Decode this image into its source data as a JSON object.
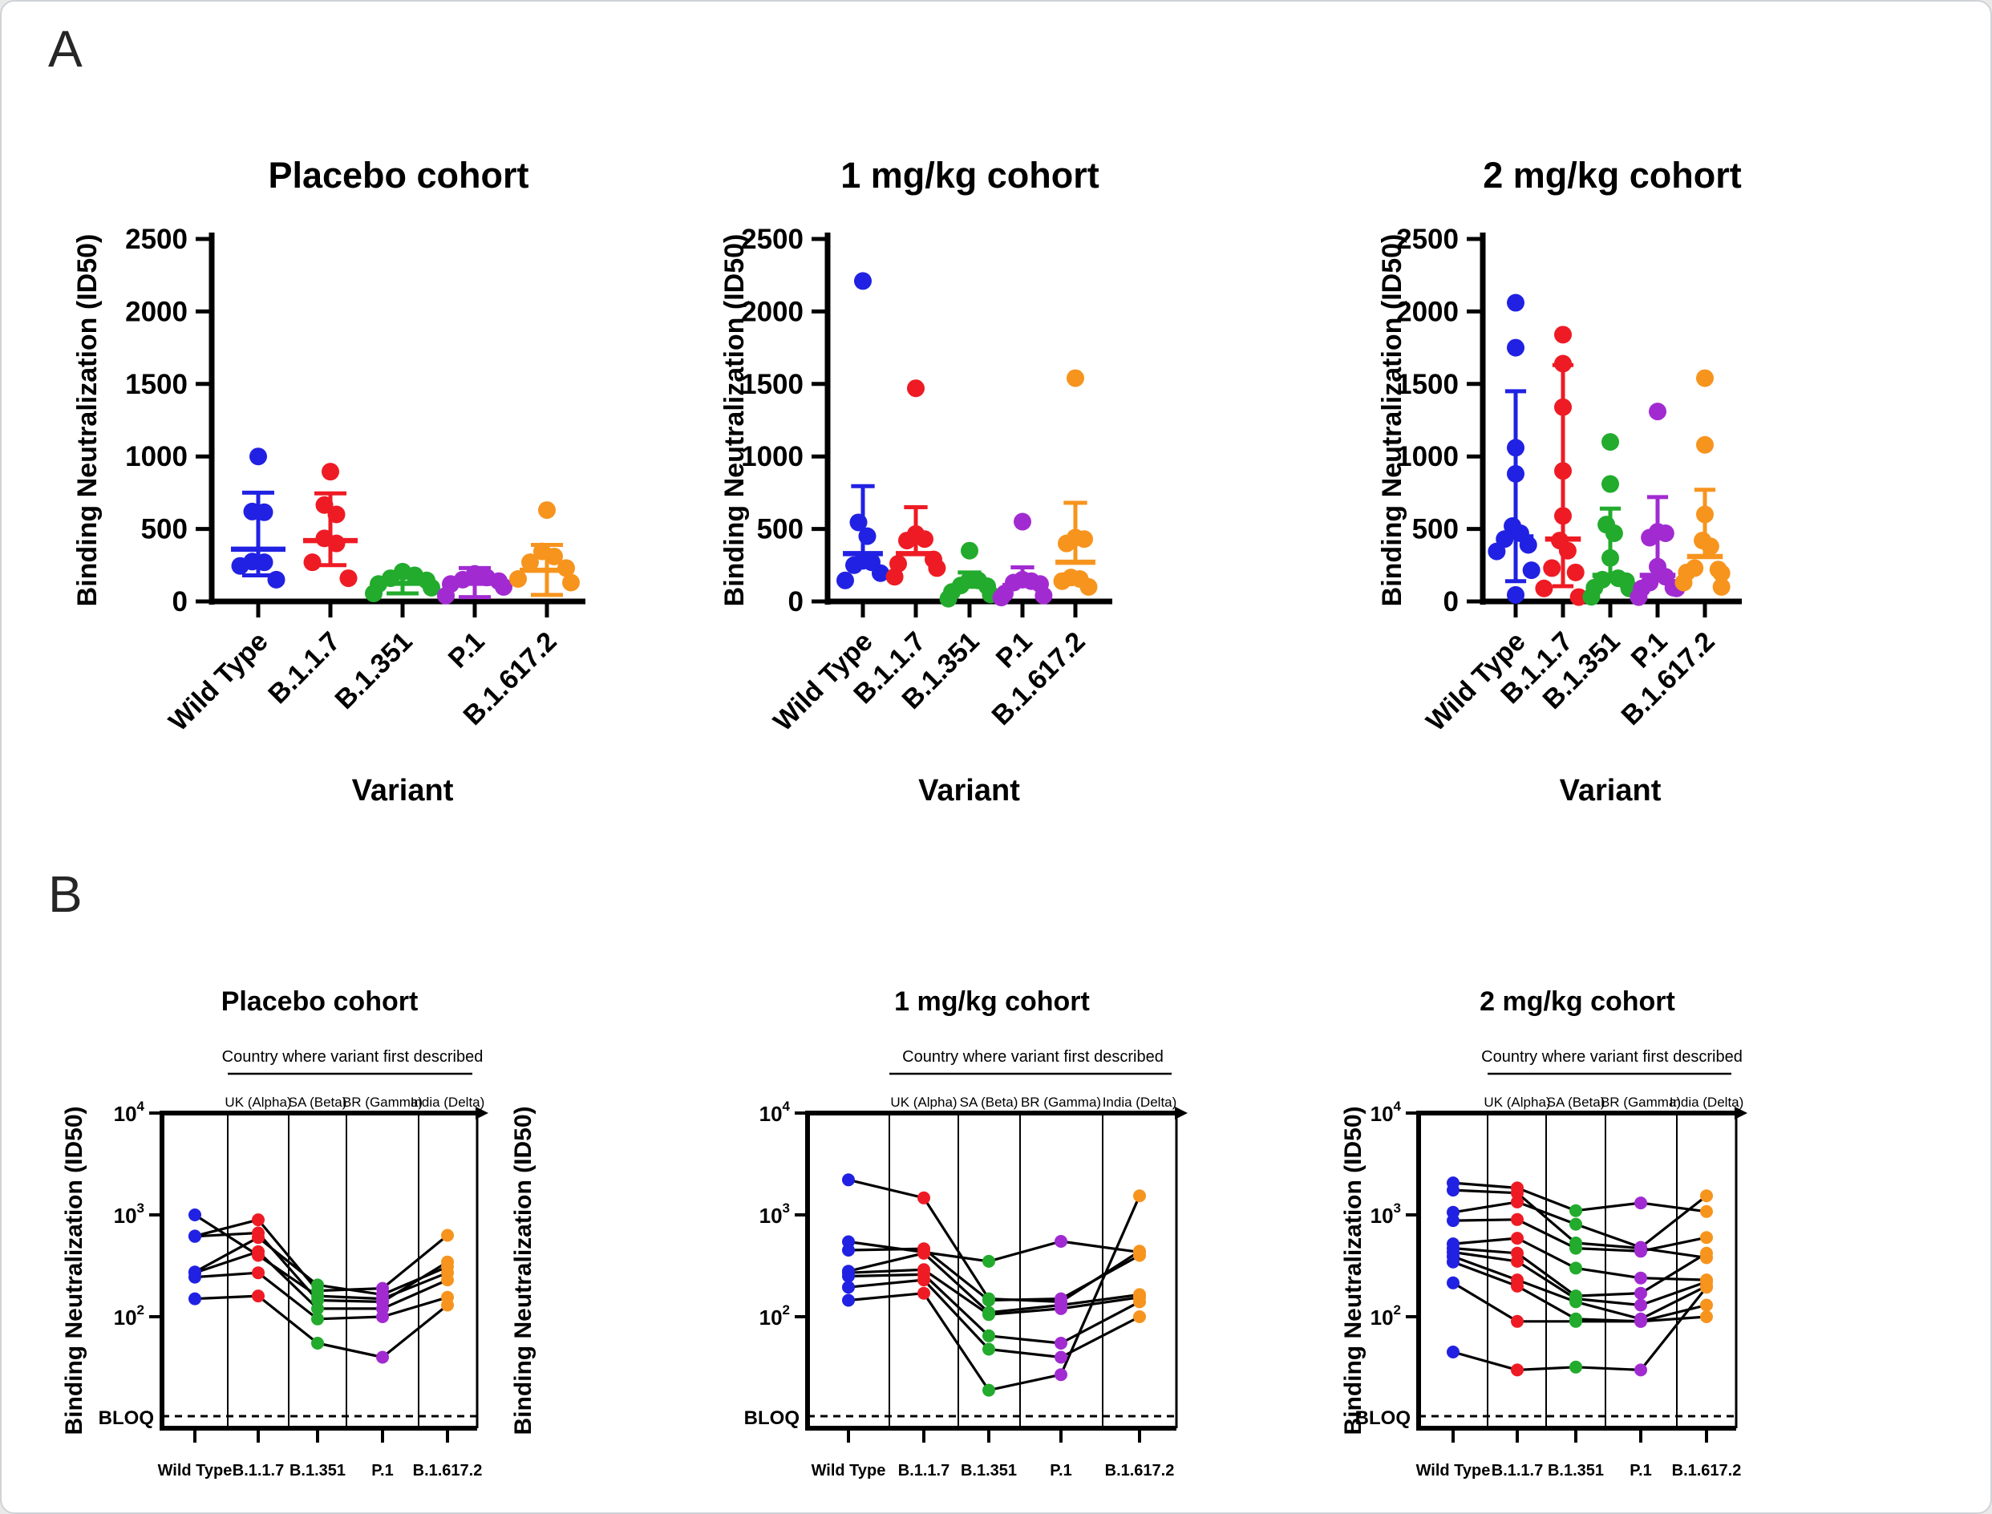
{
  "figure": {
    "panel_a": {
      "label": "A"
    },
    "panel_b": {
      "label": "B"
    },
    "colors": {
      "blue": "#2121e3",
      "red": "#ee1b24",
      "green": "#22ab2d",
      "purple": "#a12bd1",
      "orange": "#f7941e",
      "axis": "#000000",
      "subject_line": "#000000"
    },
    "variants": [
      "Wild Type",
      "B.1.1.7",
      "B.1.351",
      "P.1",
      "B.1.617.2"
    ]
  },
  "chart_data": [
    {
      "id": "panel-a-placebo",
      "panel": "A",
      "type": "scatter",
      "title": "Placebo cohort",
      "ylabel": "Binding Neutralization (ID50)",
      "xlabel": "Variant",
      "ylim": [
        0,
        2500
      ],
      "yticks": [
        0,
        500,
        1000,
        1500,
        2000,
        2500
      ],
      "categories": [
        "Wild Type",
        "B.1.1.7",
        "B.1.351",
        "P.1",
        "B.1.617.2"
      ],
      "series": [
        {
          "variant": "Wild Type",
          "color": "blue",
          "points": [
            1000,
            620,
            615,
            275,
            270,
            245,
            150
          ],
          "center": 360,
          "upper": 750,
          "lower": 180
        },
        {
          "variant": "B.1.1.7",
          "color": "red",
          "points": [
            895,
            665,
            600,
            435,
            400,
            270,
            160
          ],
          "center": 420,
          "upper": 745,
          "lower": 250
        },
        {
          "variant": "B.1.351",
          "color": "green",
          "points": [
            205,
            180,
            160,
            145,
            120,
            95,
            55
          ],
          "center": 125,
          "upper": 195,
          "lower": 55
        },
        {
          "variant": "P.1",
          "color": "purple",
          "points": [
            190,
            165,
            150,
            140,
            120,
            100,
            40
          ],
          "center": 125,
          "upper": 230,
          "lower": 30
        },
        {
          "variant": "B.1.617.2",
          "color": "orange",
          "points": [
            630,
            345,
            310,
            270,
            230,
            155,
            130
          ],
          "center": 215,
          "upper": 390,
          "lower": 45
        }
      ]
    },
    {
      "id": "panel-a-1mgkg",
      "panel": "A",
      "type": "scatter",
      "title": "1 mg/kg cohort",
      "ylabel": "Binding Neutralization (ID50)",
      "xlabel": "Variant",
      "ylim": [
        0,
        2500
      ],
      "yticks": [
        0,
        500,
        1000,
        1500,
        2000,
        2500
      ],
      "categories": [
        "Wild Type",
        "B.1.1.7",
        "B.1.351",
        "P.1",
        "B.1.617.2"
      ],
      "series": [
        {
          "variant": "Wild Type",
          "color": "blue",
          "points": [
            2210,
            545,
            450,
            280,
            270,
            250,
            195,
            145
          ],
          "center": 330,
          "upper": 795,
          "lower": null
        },
        {
          "variant": "B.1.1.7",
          "color": "red",
          "points": [
            1470,
            465,
            430,
            420,
            290,
            260,
            230,
            170
          ],
          "center": 330,
          "upper": 650,
          "lower": null
        },
        {
          "variant": "B.1.351",
          "color": "green",
          "points": [
            350,
            150,
            145,
            110,
            105,
            65,
            48,
            19
          ],
          "center": 105,
          "upper": 200,
          "lower": null
        },
        {
          "variant": "P.1",
          "color": "purple",
          "points": [
            550,
            150,
            140,
            130,
            120,
            55,
            40,
            27
          ],
          "center": 110,
          "upper": 235,
          "lower": null
        },
        {
          "variant": "B.1.617.2",
          "color": "orange",
          "points": [
            1540,
            440,
            430,
            400,
            165,
            155,
            140,
            100
          ],
          "center": 270,
          "upper": 680,
          "lower": null
        }
      ]
    },
    {
      "id": "panel-a-2mgkg",
      "panel": "A",
      "type": "scatter",
      "title": "2 mg/kg cohort",
      "ylabel": "Binding Neutralization (ID50)",
      "xlabel": "Variant",
      "ylim": [
        0,
        2500
      ],
      "yticks": [
        0,
        500,
        1000,
        1500,
        2000,
        2500
      ],
      "categories": [
        "Wild Type",
        "B.1.1.7",
        "B.1.351",
        "P.1",
        "B.1.617.2"
      ],
      "series": [
        {
          "variant": "Wild Type",
          "color": "blue",
          "points": [
            2060,
            1750,
            1060,
            880,
            520,
            470,
            430,
            390,
            345,
            215,
            45
          ],
          "center": 445,
          "upper": 1450,
          "lower": 140
        },
        {
          "variant": "B.1.1.7",
          "color": "red",
          "points": [
            1840,
            1640,
            1340,
            900,
            590,
            420,
            350,
            230,
            200,
            90,
            30
          ],
          "center": 430,
          "upper": 1630,
          "lower": 105
        },
        {
          "variant": "B.1.351",
          "color": "green",
          "points": [
            1100,
            810,
            530,
            470,
            300,
            160,
            150,
            140,
            95,
            90,
            32
          ],
          "center": 180,
          "upper": 640,
          "lower": null
        },
        {
          "variant": "P.1",
          "color": "purple",
          "points": [
            1310,
            480,
            470,
            440,
            240,
            170,
            130,
            95,
            90,
            90,
            30
          ],
          "center": 180,
          "upper": 720,
          "lower": null
        },
        {
          "variant": "B.1.617.2",
          "color": "orange",
          "points": [
            1540,
            1080,
            600,
            420,
            380,
            230,
            220,
            200,
            195,
            130,
            100
          ],
          "center": 310,
          "upper": 770,
          "lower": null
        }
      ]
    },
    {
      "id": "panel-b-placebo",
      "panel": "B",
      "type": "paired-line",
      "yscale": "log",
      "title": "Placebo cohort",
      "countries_header": "Country where variant first described",
      "countries": [
        "UK (Alpha)",
        "SA (Beta)",
        "BR (Gamma)",
        "India (Delta)"
      ],
      "ylabel": "Binding Neutralization (ID50)",
      "ytick_exponents": [
        4,
        3,
        2
      ],
      "bloq_label": "BLOQ",
      "categories": [
        "Wild Type",
        "B.1.1.7",
        "B.1.351",
        "P.1",
        "B.1.617.2"
      ],
      "subjects": [
        [
          1000,
          400,
          160,
          150,
          270
        ],
        [
          620,
          895,
          180,
          190,
          630
        ],
        [
          615,
          665,
          145,
          140,
          345
        ],
        [
          275,
          600,
          205,
          165,
          310
        ],
        [
          270,
          435,
          120,
          120,
          230
        ],
        [
          245,
          270,
          95,
          100,
          155
        ],
        [
          150,
          160,
          55,
          40,
          130
        ]
      ]
    },
    {
      "id": "panel-b-1mgkg",
      "panel": "B",
      "type": "paired-line",
      "yscale": "log",
      "title": "1 mg/kg cohort",
      "countries_header": "Country where variant first described",
      "countries": [
        "UK (Alpha)",
        "SA (Beta)",
        "BR (Gamma)",
        "India (Delta)"
      ],
      "ylabel": "Binding Neutralization (ID50)",
      "ytick_exponents": [
        4,
        3,
        2
      ],
      "bloq_label": "BLOQ",
      "categories": [
        "Wild Type",
        "B.1.1.7",
        "B.1.351",
        "P.1",
        "B.1.617.2"
      ],
      "subjects": [
        [
          2210,
          1470,
          150,
          140,
          440
        ],
        [
          545,
          430,
          350,
          550,
          430
        ],
        [
          450,
          465,
          145,
          150,
          400
        ],
        [
          280,
          420,
          110,
          130,
          165
        ],
        [
          270,
          290,
          105,
          120,
          155
        ],
        [
          250,
          260,
          65,
          55,
          140
        ],
        [
          195,
          230,
          48,
          40,
          100
        ],
        [
          145,
          170,
          19,
          27,
          1540
        ]
      ]
    },
    {
      "id": "panel-b-2mgkg",
      "panel": "B",
      "type": "paired-line",
      "yscale": "log",
      "title": "2 mg/kg cohort",
      "countries_header": "Country where variant first described",
      "countries": [
        "UK (Alpha)",
        "SA (Beta)",
        "BR (Gamma)",
        "India (Delta)"
      ],
      "ylabel": "Binding Neutralization (ID50)",
      "ytick_exponents": [
        4,
        3,
        2
      ],
      "bloq_label": "BLOQ",
      "categories": [
        "Wild Type",
        "B.1.1.7",
        "B.1.351",
        "P.1",
        "B.1.617.2"
      ],
      "subjects": [
        [
          2060,
          1840,
          1100,
          1310,
          1080
        ],
        [
          1750,
          1640,
          530,
          470,
          380
        ],
        [
          1060,
          1340,
          810,
          480,
          1540
        ],
        [
          880,
          900,
          470,
          440,
          600
        ],
        [
          520,
          590,
          300,
          240,
          230
        ],
        [
          470,
          420,
          160,
          170,
          420
        ],
        [
          430,
          350,
          150,
          130,
          220
        ],
        [
          390,
          230,
          140,
          95,
          200
        ],
        [
          345,
          200,
          95,
          90,
          130
        ],
        [
          215,
          90,
          90,
          90,
          100
        ],
        [
          45,
          30,
          32,
          30,
          195
        ]
      ]
    }
  ]
}
